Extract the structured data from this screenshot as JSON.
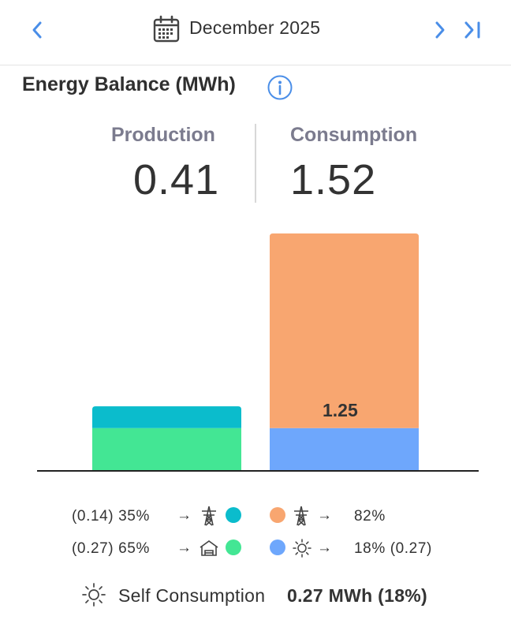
{
  "header": {
    "month": "December 2025",
    "icons": [
      "chevron-left-icon",
      "calendar-icon",
      "chevron-right-icon",
      "skip-to-last-icon"
    ]
  },
  "section": {
    "title": "Energy Balance (MWh)",
    "info_icon": "info-icon"
  },
  "summary": {
    "production_label": "Production",
    "production_value": "0.41",
    "consumption_label": "Consumption",
    "consumption_value": "1.52"
  },
  "chart_data": {
    "type": "bar",
    "stacked": true,
    "unit": "MWh",
    "categories": [
      "Production",
      "Consumption"
    ],
    "series": [
      {
        "key": "export",
        "color": "#0bbccc",
        "values": [
          0.14,
          0
        ]
      },
      {
        "key": "self_consumption_produced",
        "color": "#43e694",
        "values": [
          0.27,
          0
        ]
      },
      {
        "key": "self_consumption_consumed",
        "color": "#6ea7fc",
        "values": [
          0,
          0.27
        ]
      },
      {
        "key": "import",
        "color": "#f8a670",
        "values": [
          0,
          1.25
        ]
      }
    ],
    "data_labels": [
      {
        "category": "Consumption",
        "series": "import",
        "text": "1.25"
      }
    ],
    "ylim": [
      0,
      1.52
    ]
  },
  "legend": {
    "left_rows": [
      {
        "text": "(0.14) 35%",
        "icon": "transmission-tower-icon",
        "color": "#0bbccc"
      },
      {
        "text": "(0.27) 65%",
        "icon": "house-icon",
        "color": "#43e694"
      }
    ],
    "right_rows": [
      {
        "text": "82%",
        "icon": "transmission-tower-icon",
        "color": "#f8a670"
      },
      {
        "text": "18% (0.27)",
        "icon": "sun-icon",
        "color": "#6ea7fc"
      }
    ],
    "arrow": "→"
  },
  "footer": {
    "label": "Self Consumption",
    "value": "0.27 MWh (18%)",
    "icon": "sun-icon"
  }
}
